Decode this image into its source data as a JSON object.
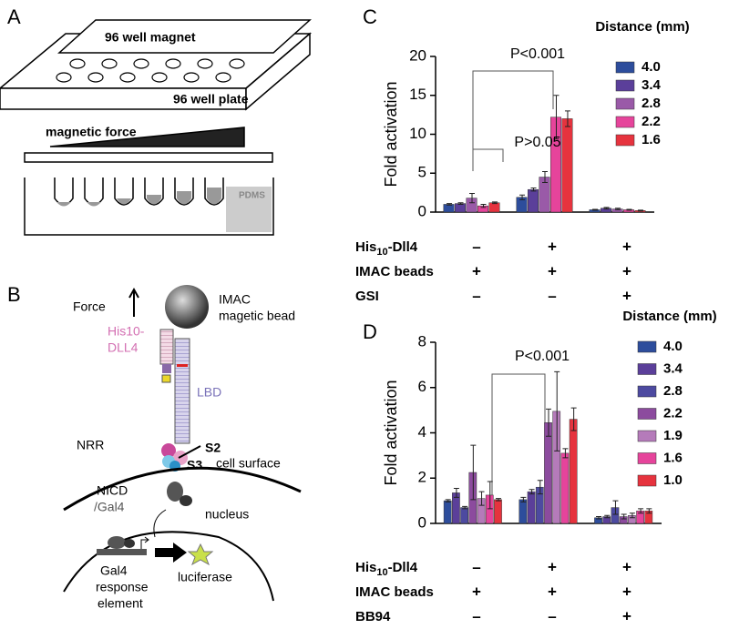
{
  "panel_a": {
    "label": "A",
    "magnet": "96 well magnet",
    "plate": "96 well plate",
    "force": "magnetic force",
    "pdms": "PDMS"
  },
  "panel_b": {
    "label": "B",
    "force": "Force",
    "bead1": "IMAC",
    "bead2": "magetic bead",
    "his1": "His10-",
    "his2": "DLL4",
    "lbd": "LBD",
    "nrr": "NRR",
    "s2": "S2",
    "s3": "S3",
    "surface": "cell surface",
    "nicd1": "NICD",
    "nicd2": "/Gal4",
    "nucleus": "nucleus",
    "gal1": "Gal4",
    "gal2": "response",
    "gal3": "element",
    "luc": "luciferase"
  },
  "chart_data": [
    {
      "type": "bar",
      "panel": "C",
      "y_label": "Fold activation",
      "legend_title": "Distance (mm)",
      "ylim": [
        0,
        20
      ],
      "yticks": [
        0,
        5,
        10,
        15,
        20
      ],
      "annotations": [
        "P<0.001",
        "P>0.05"
      ],
      "condition_rows": [
        {
          "label": "His",
          "sub": "10",
          "suffix": "-Dll4",
          "signs": [
            "–",
            "+",
            "+"
          ]
        },
        {
          "label": "IMAC beads",
          "signs": [
            "+",
            "+",
            "+"
          ]
        },
        {
          "label": "GSI",
          "signs": [
            "–",
            "–",
            "+"
          ]
        }
      ],
      "series": [
        {
          "name": "4.0",
          "color": "#2d4d9c",
          "values": [
            1.0,
            1.9,
            0.3
          ],
          "errors": [
            0.1,
            0.3,
            0.05
          ]
        },
        {
          "name": "3.4",
          "color": "#5b3f9a",
          "values": [
            1.1,
            2.9,
            0.5
          ],
          "errors": [
            0.1,
            0.2,
            0.1
          ]
        },
        {
          "name": "2.8",
          "color": "#9a5aa8",
          "values": [
            1.8,
            4.5,
            0.4
          ],
          "errors": [
            0.6,
            0.7,
            0.1
          ]
        },
        {
          "name": "2.2",
          "color": "#e6449b",
          "values": [
            0.8,
            12.2,
            0.3
          ],
          "errors": [
            0.2,
            2.8,
            0.05
          ]
        },
        {
          "name": "1.6",
          "color": "#e6333e",
          "values": [
            1.2,
            12.0,
            0.2
          ],
          "errors": [
            0.1,
            1.0,
            0.05
          ]
        }
      ]
    },
    {
      "type": "bar",
      "panel": "D",
      "y_label": "Fold activation",
      "legend_title": "Distance (mm)",
      "ylim": [
        0,
        8
      ],
      "yticks": [
        0,
        2,
        4,
        6,
        8
      ],
      "annotations": [
        "P<0.001"
      ],
      "condition_rows": [
        {
          "label": "His",
          "sub": "10",
          "suffix": "-Dll4",
          "signs": [
            "–",
            "+",
            "+"
          ]
        },
        {
          "label": "IMAC beads",
          "signs": [
            "+",
            "+",
            "+"
          ]
        },
        {
          "label": "BB94",
          "signs": [
            "–",
            "–",
            "+"
          ]
        }
      ],
      "series": [
        {
          "name": "4.0",
          "color": "#2d4d9c",
          "values": [
            1.0,
            1.05,
            0.25
          ],
          "errors": [
            0.05,
            0.1,
            0.05
          ]
        },
        {
          "name": "3.4",
          "color": "#5b3f9a",
          "values": [
            1.35,
            1.4,
            0.3
          ],
          "errors": [
            0.2,
            0.1,
            0.05
          ]
        },
        {
          "name": "2.8",
          "color": "#4d4aa0",
          "values": [
            0.7,
            1.6,
            0.7
          ],
          "errors": [
            0.05,
            0.3,
            0.3
          ]
        },
        {
          "name": "2.2",
          "color": "#8c4b9e",
          "values": [
            2.25,
            4.45,
            0.3
          ],
          "errors": [
            1.2,
            0.6,
            0.1
          ]
        },
        {
          "name": "1.9",
          "color": "#b57bba",
          "values": [
            1.1,
            4.95,
            0.35
          ],
          "errors": [
            0.3,
            1.75,
            0.1
          ]
        },
        {
          "name": "1.6",
          "color": "#e6449b",
          "values": [
            1.25,
            3.1,
            0.55
          ],
          "errors": [
            0.6,
            0.2,
            0.1
          ]
        },
        {
          "name": "1.0",
          "color": "#e6333e",
          "values": [
            1.05,
            4.6,
            0.55
          ],
          "errors": [
            0.05,
            0.5,
            0.1
          ]
        }
      ]
    }
  ]
}
